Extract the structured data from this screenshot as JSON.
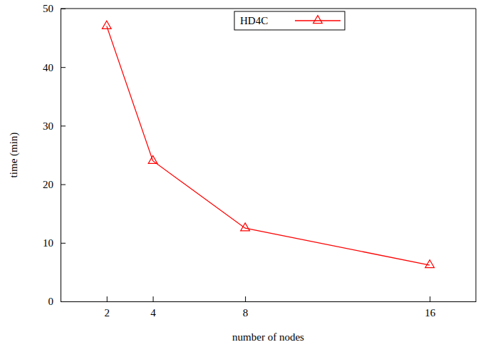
{
  "chart_data": {
    "type": "line",
    "x_label": "number of nodes",
    "y_label": "time (min)",
    "x": [
      2,
      4,
      8,
      16
    ],
    "series": [
      {
        "name": "HD4C",
        "color": "#ff0000",
        "marker": "triangle",
        "values": [
          47,
          24,
          12.5,
          6.2
        ]
      }
    ],
    "xlim": [
      0,
      18
    ],
    "xticks": [
      2,
      4,
      8,
      16
    ],
    "ylim": [
      0,
      50
    ],
    "yticks": [
      0,
      10,
      20,
      30,
      40,
      50
    ],
    "grid": false,
    "legend": "top"
  }
}
